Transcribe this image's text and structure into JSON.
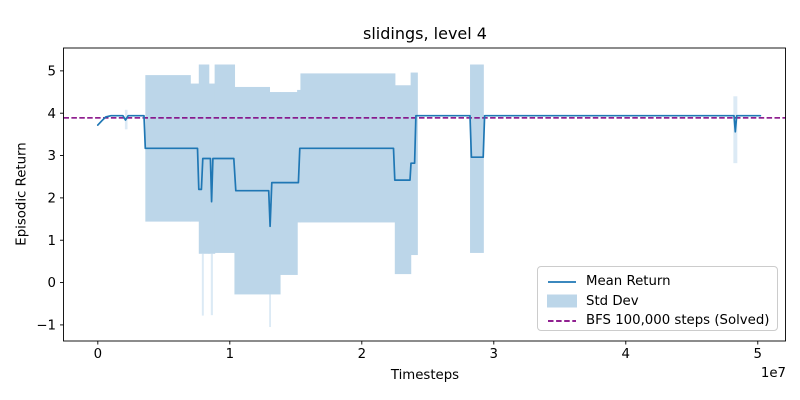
{
  "figure": {
    "title": "slidings, level 4",
    "xlabel": "Timesteps",
    "ylabel": "Episodic Return",
    "x_offset_label": "1e7"
  },
  "chart_data": {
    "type": "line",
    "title": "slidings, level 4",
    "xlabel": "Timesteps",
    "ylabel": "Episodic Return",
    "x_unit": "1e7",
    "xlim": [
      -0.26,
      5.21
    ],
    "ylim": [
      -1.38,
      5.54
    ],
    "xticks": [
      0,
      1,
      2,
      3,
      4,
      5
    ],
    "yticks": [
      -1,
      0,
      1,
      2,
      3,
      4,
      5
    ],
    "grid": false,
    "series": [
      {
        "name": "Mean Return",
        "color": "#1f77b4",
        "points": [
          [
            0.0,
            3.72
          ],
          [
            0.03,
            3.82
          ],
          [
            0.06,
            3.91
          ],
          [
            0.1,
            3.94
          ],
          [
            0.19,
            3.94
          ],
          [
            0.21,
            3.84
          ],
          [
            0.23,
            3.94
          ],
          [
            0.35,
            3.94
          ],
          [
            0.36,
            3.17
          ],
          [
            0.755,
            3.17
          ],
          [
            0.765,
            2.2
          ],
          [
            0.785,
            2.2
          ],
          [
            0.795,
            2.93
          ],
          [
            0.853,
            2.93
          ],
          [
            0.862,
            1.91
          ],
          [
            0.872,
            2.93
          ],
          [
            1.03,
            2.93
          ],
          [
            1.045,
            2.17
          ],
          [
            1.295,
            2.17
          ],
          [
            1.305,
            1.33
          ],
          [
            1.318,
            2.36
          ],
          [
            1.52,
            2.36
          ],
          [
            1.53,
            3.17
          ],
          [
            2.24,
            3.17
          ],
          [
            2.25,
            2.42
          ],
          [
            2.365,
            2.42
          ],
          [
            2.373,
            2.82
          ],
          [
            2.4,
            2.82
          ],
          [
            2.41,
            3.94
          ],
          [
            2.82,
            3.94
          ],
          [
            2.83,
            2.96
          ],
          [
            2.92,
            2.96
          ],
          [
            2.93,
            3.94
          ],
          [
            4.82,
            3.94
          ],
          [
            4.83,
            3.56
          ],
          [
            4.84,
            3.94
          ],
          [
            5.02,
            3.94
          ]
        ]
      }
    ],
    "band": {
      "name": "Std Dev",
      "color": "#bcd6e9",
      "spike_color": "#dceaf5",
      "segments": [
        [
          0.36,
          0.7,
          4.9,
          1.44
        ],
        [
          0.7,
          0.765,
          4.7,
          1.44
        ],
        [
          0.765,
          0.84,
          5.15,
          0.68
        ],
        [
          0.84,
          0.885,
          4.7,
          0.68
        ],
        [
          0.885,
          1.035,
          5.15,
          0.7
        ],
        [
          1.035,
          1.3,
          4.62,
          -0.28
        ],
        [
          1.3,
          1.38,
          4.5,
          -0.28
        ],
        [
          1.38,
          1.51,
          4.5,
          0.18
        ],
        [
          1.51,
          1.535,
          4.55,
          1.42
        ],
        [
          1.535,
          2.25,
          4.94,
          1.42
        ],
        [
          2.25,
          2.37,
          4.66,
          0.2
        ],
        [
          2.37,
          2.42,
          4.96,
          0.65
        ],
        [
          2.82,
          2.92,
          5.15,
          0.7
        ]
      ],
      "spikes": [
        [
          0.205,
          0.225,
          4.08,
          3.62
        ],
        [
          0.788,
          0.803,
          0.68,
          -0.78
        ],
        [
          0.856,
          0.872,
          0.68,
          -0.77
        ],
        [
          1.298,
          1.312,
          -0.28,
          -1.05
        ],
        [
          4.815,
          4.845,
          4.4,
          2.82
        ]
      ]
    },
    "hline": {
      "name": "BFS 100,000 steps (Solved)",
      "value": 3.89,
      "color": "#800080",
      "style": "dashed"
    },
    "legend": [
      {
        "label": "Mean Return",
        "swatch": "line",
        "color": "#1f77b4"
      },
      {
        "label": "Std Dev",
        "swatch": "patch",
        "color": "#bcd6e9"
      },
      {
        "label": "BFS 100,000 steps (Solved)",
        "swatch": "dashed-line",
        "color": "#800080"
      }
    ],
    "legend_position": "lower right"
  }
}
